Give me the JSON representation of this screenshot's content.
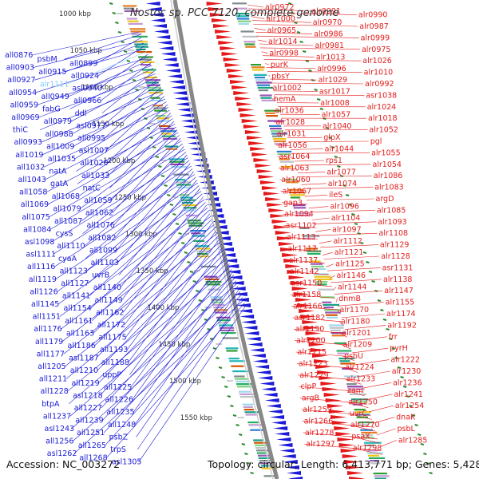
{
  "title": "Nostoc sp. PCC 7120, complete genome",
  "footer": {
    "accession": "Accession: NC_003272",
    "topology": "Topology: circular; Length: 6,413,771 bp; Genes: 5,428"
  },
  "colors": {
    "minus_strand": "#1a1ad8",
    "plus_strand": "#e41a1a",
    "tick_mark": "#2a8a2a",
    "highlight": "#87cefa",
    "backbone": "#888888"
  },
  "kbp_ticks": [
    "1000 kbp",
    "1050 kbp",
    "1100 kbp",
    "1150 kbp",
    "1200 kbp",
    "1250 kbp",
    "1300 kbp",
    "1350 kbp",
    "1400 kbp",
    "1450 kbp",
    "1500 kbp",
    "1550 kbp"
  ],
  "left_labels": [
    "all0876",
    "psbM",
    "all0899",
    "all0903",
    "all0915",
    "all0924",
    "all0927",
    "alr1111",
    "asl0940",
    "all0954",
    "all0949",
    "all0966",
    "all0959",
    "fabG",
    "ddl",
    "all0969",
    "all0979",
    "asl0977",
    "thiC",
    "all0988",
    "all0995",
    "all0993",
    "all1009",
    "asl1007",
    "all1019",
    "all1035",
    "all1020",
    "all1032",
    "natA",
    "all1033",
    "all1043",
    "gatA",
    "natC",
    "all1058",
    "all1068",
    "all1059",
    "all1069",
    "all1079",
    "all1062",
    "all1075",
    "all1087",
    "all1076",
    "all1084",
    "cysS",
    "all1082",
    "asl1098",
    "all1110",
    "all1099",
    "asl1111",
    "cyaA",
    "all1103",
    "all1116",
    "all1123",
    "uvrB",
    "all1119",
    "all1127",
    "all1140",
    "all1126",
    "all1141",
    "all1149",
    "all1145",
    "all1154",
    "all1162",
    "all1151",
    "all1161",
    "all1172",
    "all1176",
    "all1163",
    "all1175",
    "all1179",
    "all1186",
    "all1193",
    "all1177",
    "asl1187",
    "all1188",
    "all1205",
    "all1210",
    "uppP",
    "all1211",
    "all1219",
    "all1225",
    "all1228",
    "asl1218",
    "all1226",
    "btpA",
    "all1227",
    "all1235",
    "all1237",
    "all1239",
    "all1248",
    "asl1243",
    "all1251",
    "psbZ",
    "all1256",
    "all1265",
    "trpS",
    "asl1262",
    "all1268",
    "asl1305"
  ],
  "right_labels": [
    "alr0972",
    "alr0991",
    "alr0990",
    "alr1000",
    "alr0970",
    "alr0987",
    "alr0965",
    "alr0986",
    "alr0999",
    "alr1014",
    "alr0981",
    "alr0975",
    "alr0998",
    "alr1013",
    "alr1026",
    "purK",
    "alr0996",
    "alr1010",
    "pbsY",
    "alr1029",
    "alr0992",
    "alr1002",
    "asr1017",
    "asr1038",
    "hemA",
    "alr1008",
    "alr1024",
    "alr1036",
    "alr1057",
    "alr1018",
    "alr1028",
    "alr1040",
    "alr1052",
    "alr1031",
    "glpX",
    "pgl",
    "alr1056",
    "alr1044",
    "alr1055",
    "asr1064",
    "rps1",
    "alr1054",
    "alr1063",
    "alr1077",
    "alr1086",
    "alr1060",
    "alr1074",
    "alr1083",
    "alr1067",
    "ileS",
    "argD",
    "gap3",
    "alr1096",
    "alr1085",
    "alr1094",
    "alr1104",
    "alr1093",
    "asr1102",
    "alr1097",
    "alr1108",
    "alr1113",
    "alr1112",
    "alr1129",
    "alr1117",
    "alr1121",
    "alr1128",
    "alr1137",
    "alr1125",
    "asr1131",
    "alr1142",
    "alr1146",
    "alr1138",
    "asr1150",
    "alr1144",
    "alr1147",
    "alr1158",
    "dnmB",
    "alr1155",
    "alr1166",
    "alr1170",
    "alr1174",
    "asr1182",
    "alr1180",
    "alr1192",
    "alr1190",
    "alr1201",
    "frr",
    "alr1200",
    "alr1209",
    "pyrH",
    "alr1215",
    "psbU",
    "alr1222",
    "alr1223",
    "alr1224",
    "alr1230",
    "alr1229",
    "alr1233",
    "alr1236",
    "clpP",
    "zam",
    "alr1241",
    "argB",
    "alr1250",
    "alr1254",
    "alr1259",
    "uvrC",
    "dnaK",
    "alr1266",
    "alr1270",
    "psbL",
    "alr1278",
    "psaX",
    "alr1285",
    "alr1297",
    "alr1298"
  ]
}
